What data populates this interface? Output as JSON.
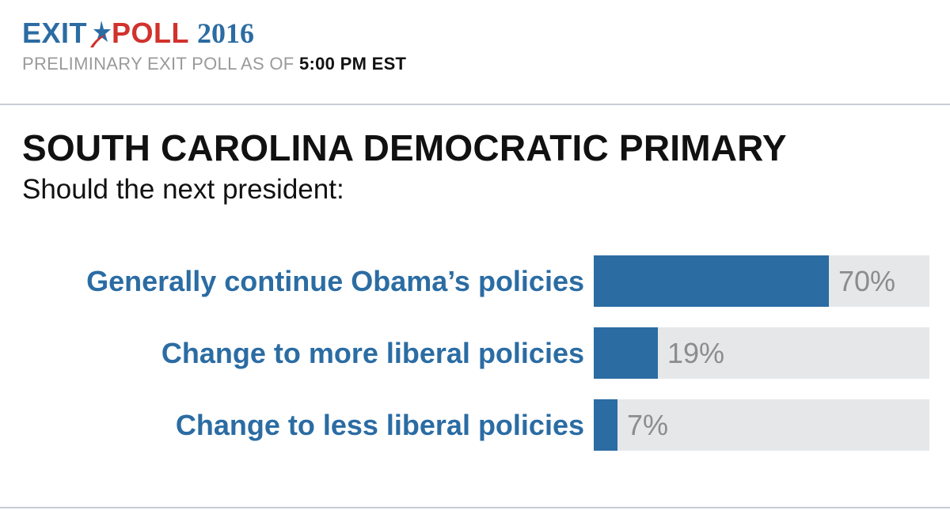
{
  "header": {
    "logo_exit": "EXIT",
    "logo_poll": "POLL",
    "logo_year": "2016",
    "subline_prefix": "PRELIMINARY EXIT POLL AS OF",
    "subline_time": "5:00 PM EST"
  },
  "colors": {
    "accent_blue": "#2b6ca3",
    "accent_red": "#d1322d",
    "track_gray": "#e6e7e9"
  },
  "chart_data": {
    "type": "bar",
    "orientation": "horizontal",
    "title": "SOUTH CAROLINA DEMOCRATIC PRIMARY",
    "subtitle": "Should the next president:",
    "categories": [
      "Generally continue Obama’s policies",
      "Change to more liberal policies",
      "Change to less liberal policies"
    ],
    "values": [
      70,
      19,
      7
    ],
    "value_labels": [
      "70%",
      "19%",
      "7%"
    ],
    "xlim": [
      0,
      100
    ],
    "grid": false,
    "legend": "none"
  }
}
